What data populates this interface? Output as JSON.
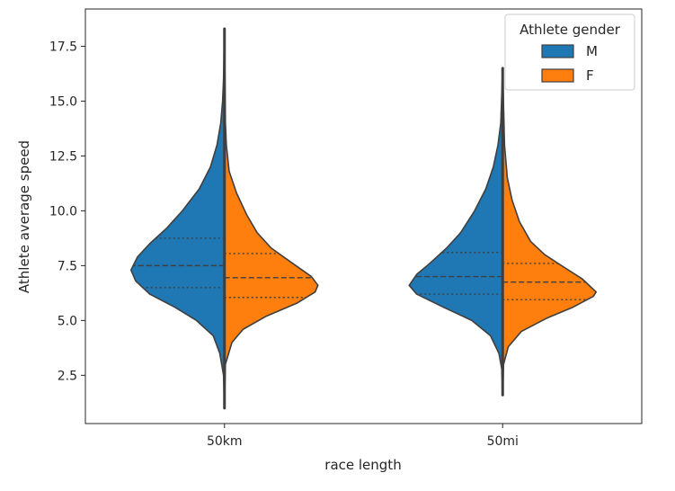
{
  "chart_data": {
    "type": "violin",
    "split": true,
    "xlabel": "race length",
    "ylabel": "Athlete average speed",
    "categories": [
      "50km",
      "50mi"
    ],
    "ylim": [
      0.3,
      19.2
    ],
    "yticks": [
      2.5,
      5.0,
      7.5,
      10.0,
      12.5,
      15.0,
      17.5
    ],
    "ytick_labels": [
      "2.5",
      "5.0",
      "7.5",
      "10.0",
      "12.5",
      "15.0",
      "17.5"
    ],
    "grid": false,
    "legend": {
      "title": "Athlete gender",
      "placement": "top-right",
      "entries": [
        {
          "label": "M",
          "color": "#1f77b4"
        },
        {
          "label": "F",
          "color": "#ff7f0e"
        }
      ]
    },
    "series": [
      {
        "name": "M",
        "color": "#1f77b4",
        "violins": [
          {
            "category": "50km",
            "min": 1.0,
            "max": 18.3,
            "q1": 6.5,
            "median": 7.5,
            "q3": 8.75,
            "profile": [
              [
                1.0,
                0.0
              ],
              [
                2.5,
                0.01
              ],
              [
                3.5,
                0.05
              ],
              [
                4.3,
                0.12
              ],
              [
                5.0,
                0.3
              ],
              [
                5.6,
                0.53
              ],
              [
                6.2,
                0.8
              ],
              [
                6.8,
                0.95
              ],
              [
                7.3,
                1.0
              ],
              [
                7.9,
                0.93
              ],
              [
                8.5,
                0.8
              ],
              [
                9.2,
                0.62
              ],
              [
                10.0,
                0.45
              ],
              [
                11.0,
                0.27
              ],
              [
                12.0,
                0.15
              ],
              [
                13.0,
                0.08
              ],
              [
                14.0,
                0.04
              ],
              [
                15.0,
                0.02
              ],
              [
                16.0,
                0.01
              ],
              [
                18.3,
                0.0
              ]
            ]
          },
          {
            "category": "50mi",
            "min": 1.6,
            "max": 16.5,
            "q1": 6.2,
            "median": 7.0,
            "q3": 8.1,
            "profile": [
              [
                1.6,
                0.0
              ],
              [
                2.8,
                0.01
              ],
              [
                3.5,
                0.04
              ],
              [
                4.3,
                0.13
              ],
              [
                5.0,
                0.33
              ],
              [
                5.6,
                0.63
              ],
              [
                6.2,
                0.92
              ],
              [
                6.6,
                1.0
              ],
              [
                7.1,
                0.92
              ],
              [
                7.6,
                0.78
              ],
              [
                8.3,
                0.6
              ],
              [
                9.0,
                0.45
              ],
              [
                10.0,
                0.3
              ],
              [
                11.0,
                0.18
              ],
              [
                12.0,
                0.1
              ],
              [
                13.0,
                0.05
              ],
              [
                14.0,
                0.02
              ],
              [
                16.5,
                0.0
              ]
            ]
          }
        ]
      },
      {
        "name": "F",
        "color": "#ff7f0e",
        "violins": [
          {
            "category": "50km",
            "min": 1.0,
            "max": 18.3,
            "q1": 6.05,
            "median": 6.95,
            "q3": 8.05,
            "profile": [
              [
                1.0,
                0.0
              ],
              [
                3.0,
                0.01
              ],
              [
                4.0,
                0.08
              ],
              [
                4.6,
                0.2
              ],
              [
                5.2,
                0.45
              ],
              [
                5.8,
                0.78
              ],
              [
                6.3,
                0.97
              ],
              [
                6.6,
                1.0
              ],
              [
                7.0,
                0.93
              ],
              [
                7.6,
                0.73
              ],
              [
                8.3,
                0.5
              ],
              [
                9.0,
                0.35
              ],
              [
                9.8,
                0.24
              ],
              [
                10.8,
                0.13
              ],
              [
                11.8,
                0.05
              ],
              [
                13.0,
                0.02
              ],
              [
                14.0,
                0.01
              ],
              [
                18.3,
                0.0
              ]
            ]
          },
          {
            "category": "50mi",
            "min": 1.6,
            "max": 16.5,
            "q1": 5.95,
            "median": 6.75,
            "q3": 7.6,
            "profile": [
              [
                1.6,
                0.0
              ],
              [
                3.0,
                0.01
              ],
              [
                3.8,
                0.06
              ],
              [
                4.5,
                0.2
              ],
              [
                5.1,
                0.47
              ],
              [
                5.6,
                0.75
              ],
              [
                6.1,
                0.97
              ],
              [
                6.3,
                1.0
              ],
              [
                6.9,
                0.85
              ],
              [
                7.5,
                0.63
              ],
              [
                8.0,
                0.45
              ],
              [
                8.6,
                0.3
              ],
              [
                9.5,
                0.18
              ],
              [
                10.5,
                0.1
              ],
              [
                11.5,
                0.05
              ],
              [
                13.0,
                0.02
              ],
              [
                16.5,
                0.0
              ]
            ]
          }
        ]
      }
    ]
  }
}
